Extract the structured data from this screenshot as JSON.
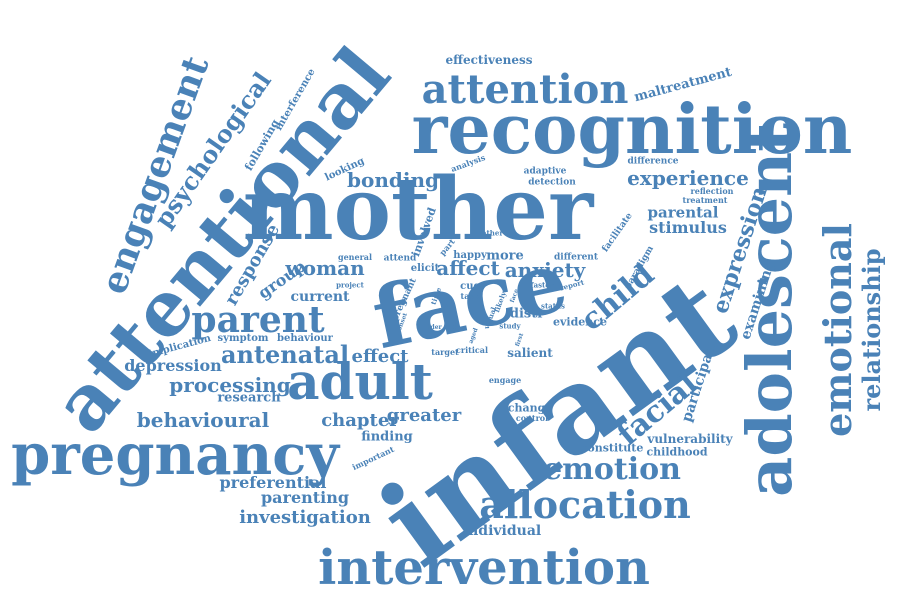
{
  "color": "#4a82b7",
  "words": {
    "infant": "infant",
    "mother": "mother",
    "face": "face",
    "recognition": "recognition",
    "attentional": "attentional",
    "pregnancy": "pregnancy",
    "adolescent": "adolescent",
    "intervention": "intervention",
    "adult": "adult",
    "emotional": "emotional",
    "attention": "attention",
    "engagement": "engagement",
    "allocation": "allocation",
    "emotion": "emotion",
    "parent": "parent",
    "relationship": "relationship",
    "psychological": "psychological",
    "facial": "facial",
    "child": "child",
    "antenatal": "antenatal",
    "expression": "expression",
    "experience": "experience",
    "bonding": "bonding",
    "behavioural": "behavioural",
    "processing": "processing",
    "investigation": "investigation",
    "woman": "woman",
    "affect": "affect",
    "anxiety": "anxiety",
    "parenting": "parenting",
    "preferential": "preferential",
    "chapter": "chapter",
    "greater": "greater",
    "depression": "depression",
    "response": "response",
    "effect": "effect",
    "stimulus": "stimulus",
    "parental": "parental",
    "group": "group",
    "participant": "participant",
    "examining": "examining",
    "maltreatment": "maltreatment",
    "effectiveness": "effectiveness",
    "individual": "individual",
    "finding": "finding",
    "vulnerability": "vulnerability",
    "childhood": "childhood",
    "constitute": "constitute",
    "research": "research",
    "current": "current",
    "more": "more",
    "distr": "distr",
    "evidence": "evidence",
    "salient": "salient",
    "change": "change",
    "symptom": "symptom",
    "behaviour": "behaviour",
    "implication": "implication",
    "following": "following",
    "interference": "interference",
    "looking": "looking",
    "analysis": "analysis",
    "adaptive": "adaptive",
    "detection": "detection",
    "difference": "difference",
    "reflection": "reflection",
    "treatment": "treatment",
    "facilitate": "facilitate",
    "paradigm": "paradigm",
    "different": "different",
    "happy": "happy",
    "attend": "attend",
    "elicit": "elicit",
    "cue": "cue",
    "task": "task",
    "engage": "engage",
    "control": "control",
    "target": "target",
    "critical": "critical",
    "important": "important",
    "involved": "involved",
    "general": "general",
    "project": "project",
    "father": "father",
    "pregnant": "pregnant",
    "faster": "faster",
    "report": "report",
    "status": "status",
    "study": "study",
    "part": "part",
    "older": "older",
    "time": "time",
    "likely": "likely",
    "via": "via",
    "face_small": "face",
    "sad": "sad",
    "visual": "visual",
    "aged": "aged",
    "onset": "onset",
    "first": "first"
  }
}
